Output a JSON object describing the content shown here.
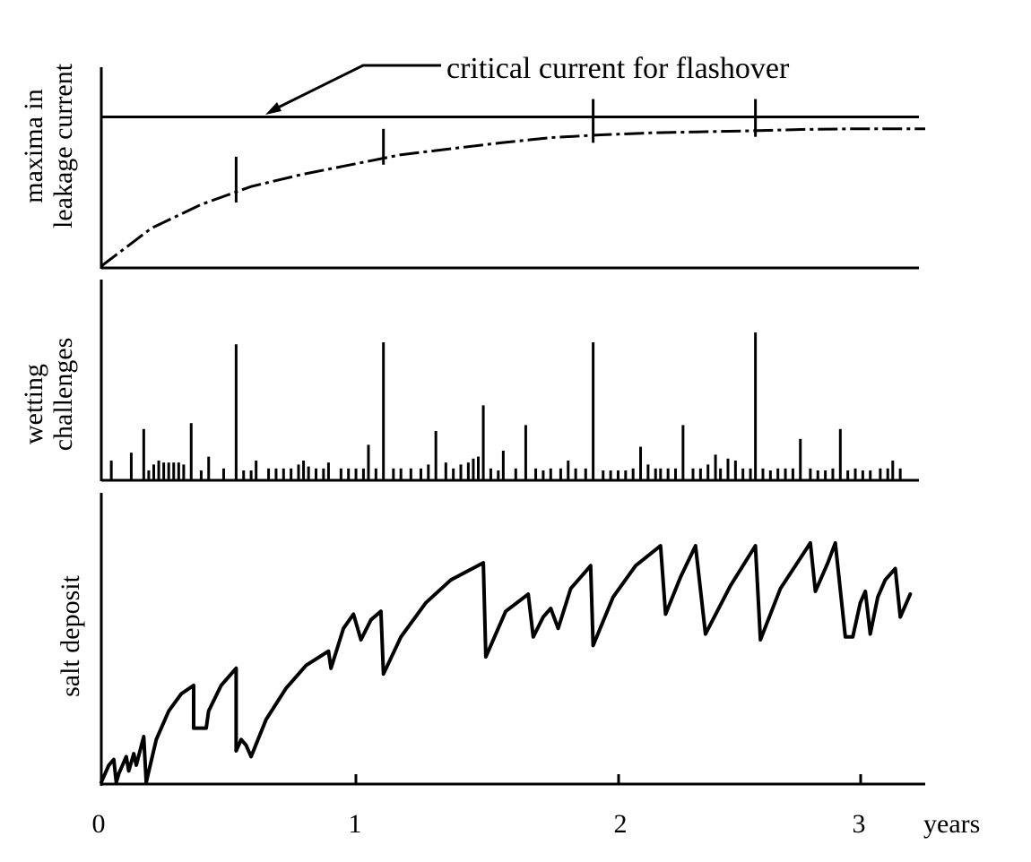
{
  "chart_data": {
    "type": "line",
    "x_tick_labels": [
      "0",
      "1",
      "2",
      "3"
    ],
    "x_unit_label": "years",
    "xlim": [
      0,
      3.3
    ],
    "panels": {
      "leakage": {
        "ylabel_lines": [
          "maxima in",
          "leakage current"
        ],
        "critical_level": 0.75,
        "critical_label": "critical current for flashover",
        "ylim": [
          0,
          1
        ],
        "envelope": {
          "x": [
            0,
            0.2,
            0.4,
            0.6,
            0.8,
            1.0,
            1.2,
            1.4,
            1.6,
            1.8,
            2.0,
            2.2,
            2.4,
            2.6,
            2.8,
            3.0,
            3.2,
            3.3
          ],
          "y": [
            0.0,
            0.19,
            0.31,
            0.4,
            0.46,
            0.51,
            0.56,
            0.59,
            0.62,
            0.646,
            0.66,
            0.67,
            0.675,
            0.68,
            0.687,
            0.69,
            0.69,
            0.69
          ]
        },
        "spikes": [
          {
            "x": 0.54,
            "base": 0.32,
            "top": 0.55
          },
          {
            "x": 1.13,
            "base": 0.51,
            "top": 0.69
          },
          {
            "x": 1.97,
            "base": 0.62,
            "top": 0.84
          },
          {
            "x": 2.62,
            "base": 0.65,
            "top": 0.84
          }
        ]
      },
      "wetting": {
        "ylabel_lines": [
          "wetting",
          "challenges"
        ],
        "ylim": [
          0,
          1
        ],
        "events": [
          {
            "x": 0.04,
            "v": 0.1
          },
          {
            "x": 0.12,
            "v": 0.14
          },
          {
            "x": 0.17,
            "v": 0.26
          },
          {
            "x": 0.19,
            "v": 0.05
          },
          {
            "x": 0.21,
            "v": 0.08
          },
          {
            "x": 0.23,
            "v": 0.1
          },
          {
            "x": 0.25,
            "v": 0.09
          },
          {
            "x": 0.27,
            "v": 0.09
          },
          {
            "x": 0.29,
            "v": 0.09
          },
          {
            "x": 0.31,
            "v": 0.09
          },
          {
            "x": 0.33,
            "v": 0.08
          },
          {
            "x": 0.36,
            "v": 0.29
          },
          {
            "x": 0.4,
            "v": 0.05
          },
          {
            "x": 0.43,
            "v": 0.12
          },
          {
            "x": 0.49,
            "v": 0.06
          },
          {
            "x": 0.54,
            "v": 0.69
          },
          {
            "x": 0.57,
            "v": 0.05
          },
          {
            "x": 0.6,
            "v": 0.05
          },
          {
            "x": 0.62,
            "v": 0.1
          },
          {
            "x": 0.67,
            "v": 0.06
          },
          {
            "x": 0.7,
            "v": 0.06
          },
          {
            "x": 0.73,
            "v": 0.06
          },
          {
            "x": 0.76,
            "v": 0.06
          },
          {
            "x": 0.79,
            "v": 0.08
          },
          {
            "x": 0.81,
            "v": 0.1
          },
          {
            "x": 0.83,
            "v": 0.07
          },
          {
            "x": 0.86,
            "v": 0.06
          },
          {
            "x": 0.89,
            "v": 0.06
          },
          {
            "x": 0.91,
            "v": 0.09
          },
          {
            "x": 0.96,
            "v": 0.06
          },
          {
            "x": 0.99,
            "v": 0.06
          },
          {
            "x": 1.02,
            "v": 0.06
          },
          {
            "x": 1.05,
            "v": 0.06
          },
          {
            "x": 1.07,
            "v": 0.18
          },
          {
            "x": 1.1,
            "v": 0.06
          },
          {
            "x": 1.13,
            "v": 0.7
          },
          {
            "x": 1.17,
            "v": 0.06
          },
          {
            "x": 1.2,
            "v": 0.06
          },
          {
            "x": 1.24,
            "v": 0.06
          },
          {
            "x": 1.28,
            "v": 0.06
          },
          {
            "x": 1.31,
            "v": 0.08
          },
          {
            "x": 1.34,
            "v": 0.25
          },
          {
            "x": 1.38,
            "v": 0.09
          },
          {
            "x": 1.41,
            "v": 0.06
          },
          {
            "x": 1.44,
            "v": 0.08
          },
          {
            "x": 1.47,
            "v": 0.09
          },
          {
            "x": 1.49,
            "v": 0.11
          },
          {
            "x": 1.51,
            "v": 0.12
          },
          {
            "x": 1.53,
            "v": 0.38
          },
          {
            "x": 1.56,
            "v": 0.06
          },
          {
            "x": 1.59,
            "v": 0.05
          },
          {
            "x": 1.61,
            "v": 0.15
          },
          {
            "x": 1.66,
            "v": 0.06
          },
          {
            "x": 1.7,
            "v": 0.28
          },
          {
            "x": 1.74,
            "v": 0.06
          },
          {
            "x": 1.77,
            "v": 0.05
          },
          {
            "x": 1.8,
            "v": 0.06
          },
          {
            "x": 1.84,
            "v": 0.06
          },
          {
            "x": 1.87,
            "v": 0.1
          },
          {
            "x": 1.9,
            "v": 0.06
          },
          {
            "x": 1.94,
            "v": 0.06
          },
          {
            "x": 1.97,
            "v": 0.7
          },
          {
            "x": 2.01,
            "v": 0.05
          },
          {
            "x": 2.04,
            "v": 0.05
          },
          {
            "x": 2.07,
            "v": 0.05
          },
          {
            "x": 2.1,
            "v": 0.05
          },
          {
            "x": 2.13,
            "v": 0.06
          },
          {
            "x": 2.16,
            "v": 0.17
          },
          {
            "x": 2.19,
            "v": 0.08
          },
          {
            "x": 2.22,
            "v": 0.06
          },
          {
            "x": 2.24,
            "v": 0.06
          },
          {
            "x": 2.27,
            "v": 0.06
          },
          {
            "x": 2.3,
            "v": 0.06
          },
          {
            "x": 2.33,
            "v": 0.28
          },
          {
            "x": 2.37,
            "v": 0.06
          },
          {
            "x": 2.4,
            "v": 0.06
          },
          {
            "x": 2.43,
            "v": 0.08
          },
          {
            "x": 2.46,
            "v": 0.13
          },
          {
            "x": 2.48,
            "v": 0.06
          },
          {
            "x": 2.51,
            "v": 0.11
          },
          {
            "x": 2.54,
            "v": 0.1
          },
          {
            "x": 2.57,
            "v": 0.06
          },
          {
            "x": 2.6,
            "v": 0.06
          },
          {
            "x": 2.62,
            "v": 0.75
          },
          {
            "x": 2.65,
            "v": 0.06
          },
          {
            "x": 2.68,
            "v": 0.05
          },
          {
            "x": 2.71,
            "v": 0.06
          },
          {
            "x": 2.74,
            "v": 0.06
          },
          {
            "x": 2.77,
            "v": 0.06
          },
          {
            "x": 2.8,
            "v": 0.21
          },
          {
            "x": 2.84,
            "v": 0.06
          },
          {
            "x": 2.87,
            "v": 0.05
          },
          {
            "x": 2.9,
            "v": 0.05
          },
          {
            "x": 2.93,
            "v": 0.06
          },
          {
            "x": 2.96,
            "v": 0.26
          },
          {
            "x": 2.99,
            "v": 0.05
          },
          {
            "x": 3.02,
            "v": 0.06
          },
          {
            "x": 3.05,
            "v": 0.05
          },
          {
            "x": 3.08,
            "v": 0.05
          },
          {
            "x": 3.12,
            "v": 0.06
          },
          {
            "x": 3.15,
            "v": 0.06
          },
          {
            "x": 3.17,
            "v": 0.1
          },
          {
            "x": 3.2,
            "v": 0.06
          }
        ]
      },
      "salt": {
        "ylabel": "salt deposit",
        "ylim": [
          0,
          1
        ],
        "points": [
          [
            0.0,
            0.0
          ],
          [
            0.03,
            0.06
          ],
          [
            0.05,
            0.08
          ],
          [
            0.06,
            0.0
          ],
          [
            0.07,
            0.03
          ],
          [
            0.1,
            0.09
          ],
          [
            0.11,
            0.04
          ],
          [
            0.13,
            0.1
          ],
          [
            0.14,
            0.06
          ],
          [
            0.17,
            0.16
          ],
          [
            0.18,
            0.0
          ],
          [
            0.22,
            0.15
          ],
          [
            0.27,
            0.25
          ],
          [
            0.32,
            0.31
          ],
          [
            0.37,
            0.34
          ],
          [
            0.37,
            0.19
          ],
          [
            0.42,
            0.19
          ],
          [
            0.43,
            0.25
          ],
          [
            0.48,
            0.34
          ],
          [
            0.54,
            0.4
          ],
          [
            0.54,
            0.11
          ],
          [
            0.56,
            0.15
          ],
          [
            0.58,
            0.13
          ],
          [
            0.6,
            0.09
          ],
          [
            0.66,
            0.22
          ],
          [
            0.74,
            0.33
          ],
          [
            0.82,
            0.41
          ],
          [
            0.91,
            0.46
          ],
          [
            0.92,
            0.4
          ],
          [
            0.97,
            0.54
          ],
          [
            1.01,
            0.59
          ],
          [
            1.04,
            0.5
          ],
          [
            1.08,
            0.57
          ],
          [
            1.12,
            0.6
          ],
          [
            1.13,
            0.38
          ],
          [
            1.2,
            0.51
          ],
          [
            1.3,
            0.63
          ],
          [
            1.4,
            0.71
          ],
          [
            1.53,
            0.77
          ],
          [
            1.54,
            0.44
          ],
          [
            1.62,
            0.6
          ],
          [
            1.71,
            0.66
          ],
          [
            1.73,
            0.51
          ],
          [
            1.77,
            0.58
          ],
          [
            1.8,
            0.61
          ],
          [
            1.83,
            0.54
          ],
          [
            1.88,
            0.68
          ],
          [
            1.94,
            0.74
          ],
          [
            1.96,
            0.76
          ],
          [
            1.97,
            0.48
          ],
          [
            2.05,
            0.65
          ],
          [
            2.14,
            0.76
          ],
          [
            2.24,
            0.83
          ],
          [
            2.26,
            0.59
          ],
          [
            2.32,
            0.72
          ],
          [
            2.38,
            0.83
          ],
          [
            2.42,
            0.52
          ],
          [
            2.52,
            0.69
          ],
          [
            2.62,
            0.83
          ],
          [
            2.64,
            0.5
          ],
          [
            2.72,
            0.68
          ],
          [
            2.84,
            0.84
          ],
          [
            2.86,
            0.67
          ],
          [
            2.91,
            0.77
          ],
          [
            2.94,
            0.84
          ],
          [
            2.98,
            0.51
          ],
          [
            3.01,
            0.51
          ],
          [
            3.04,
            0.63
          ],
          [
            3.06,
            0.67
          ],
          [
            3.08,
            0.52
          ],
          [
            3.11,
            0.65
          ],
          [
            3.14,
            0.71
          ],
          [
            3.18,
            0.75
          ],
          [
            3.2,
            0.58
          ],
          [
            3.24,
            0.66
          ]
        ]
      }
    }
  }
}
